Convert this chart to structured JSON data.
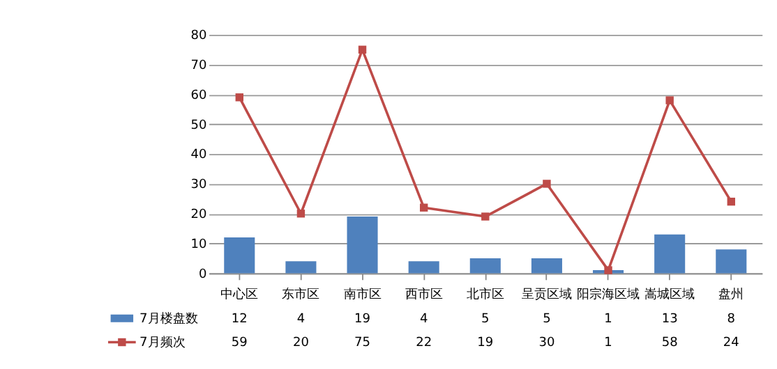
{
  "chart_data": {
    "type": "bar",
    "categories": [
      "中心区",
      "东市区",
      "南市区",
      "西市区",
      "北市区",
      "呈贡区域",
      "阳宗海区域",
      "嵩城区域",
      "盘州"
    ],
    "series": [
      {
        "name": "7月楼盘数",
        "color": "#4f81bd",
        "values": [
          12,
          4,
          19,
          4,
          5,
          5,
          1,
          13,
          8
        ]
      },
      {
        "name": "7月频次",
        "type": "line",
        "color": "#be4b48",
        "values": [
          59,
          20,
          75,
          22,
          19,
          30,
          1,
          58,
          24
        ]
      }
    ],
    "ylim": [
      0,
      80
    ],
    "yticks": [
      0,
      10,
      20,
      30,
      40,
      50,
      60,
      70,
      80
    ],
    "grid": "y",
    "legend": "bottom",
    "marker": "square",
    "line_style": "solid",
    "data_labels": true
  }
}
